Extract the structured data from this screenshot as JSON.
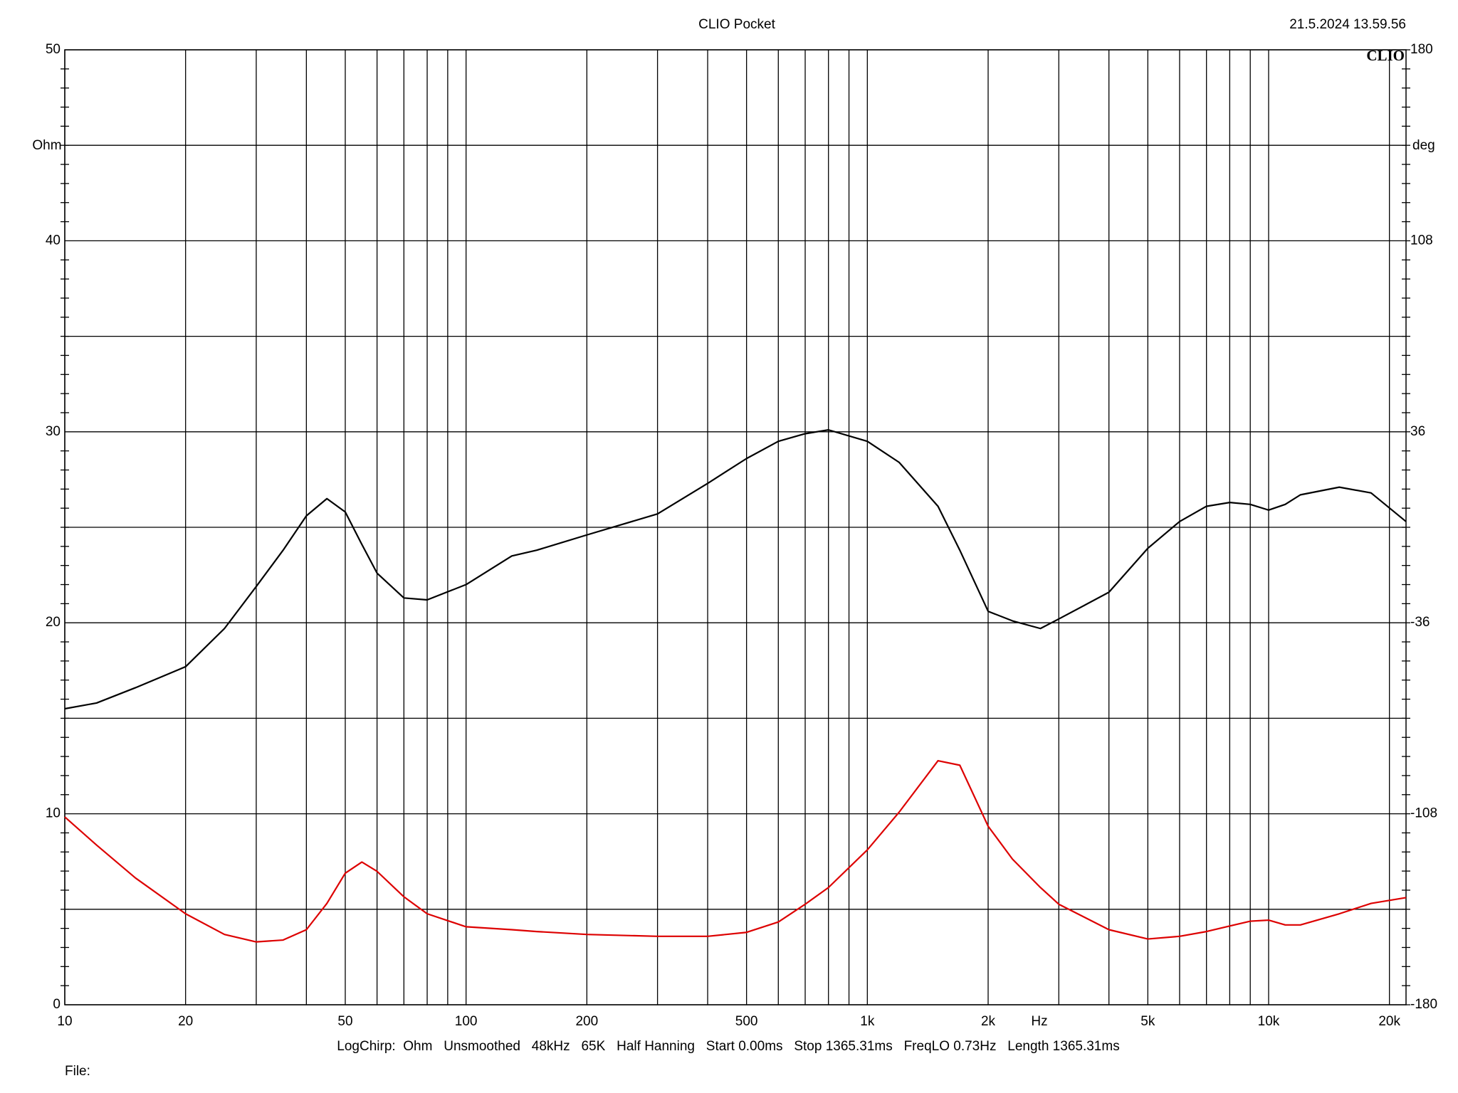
{
  "chart_data": {
    "type": "line",
    "title": "CLIO Pocket",
    "timestamp": "21.5.2024 13.59.56",
    "logo": "CLIO",
    "x_label": "Hz",
    "y_label": "Ohm",
    "y2_label": "deg",
    "footer": "LogChirp:  Ohm   Unsmoothed   48kHz   65K   Half Hanning   Start 0.00ms   Stop 1365.31ms   FreqLO 0.73Hz   Length 1365.31ms",
    "file_label": "File:",
    "xscale": "log",
    "grid": true,
    "xlim": [
      10,
      22000
    ],
    "xticks": [
      10,
      20,
      50,
      100,
      200,
      500,
      {
        "value": 1000,
        "label": "1k"
      },
      {
        "value": 2000,
        "label": "2k"
      },
      {
        "value": 5000,
        "label": "5k"
      },
      {
        "value": 10000,
        "label": "10k"
      },
      {
        "value": 20000,
        "label": "20k"
      }
    ],
    "ylim": [
      0,
      50
    ],
    "yticks": [
      0,
      10,
      20,
      30,
      40,
      50
    ],
    "y2lim": [
      -180,
      180
    ],
    "y2ticks": [
      -180,
      -108,
      -36,
      36,
      108,
      180
    ],
    "x": [
      10,
      12,
      15,
      20,
      25,
      30,
      35,
      40,
      45,
      50,
      55,
      60,
      70,
      80,
      100,
      130,
      150,
      200,
      300,
      400,
      500,
      600,
      700,
      800,
      1000,
      1200,
      1500,
      1700,
      2000,
      2300,
      2700,
      3000,
      4000,
      5000,
      6000,
      7000,
      8000,
      9000,
      10000,
      11000,
      12000,
      15000,
      18000,
      22000
    ],
    "series": [
      {
        "color": "#000000",
        "values": [
          15.5,
          15.8,
          16.6,
          17.7,
          19.7,
          21.9,
          23.8,
          25.6,
          26.5,
          25.8,
          24.1,
          22.6,
          21.3,
          21.2,
          22.0,
          23.5,
          23.8,
          24.6,
          25.7,
          27.3,
          28.6,
          29.5,
          29.9,
          30.1,
          29.5,
          28.4,
          26.1,
          23.8,
          20.6,
          20.1,
          19.7,
          20.2,
          21.6,
          23.9,
          25.3,
          26.1,
          26.3,
          26.2,
          25.9,
          26.2,
          26.7,
          27.1,
          26.8,
          25.3
        ]
      },
      {
        "color": "#dd0000",
        "axis": "y2",
        "values": [
          -109.2,
          -119.8,
          -132.2,
          -145.7,
          -153.5,
          -156.3,
          -155.6,
          -151.7,
          -141.8,
          -130.4,
          -126.2,
          -129.7,
          -139.3,
          -145.7,
          -150.6,
          -151.7,
          -152.4,
          -153.5,
          -154.2,
          -154.2,
          -152.7,
          -148.8,
          -142.1,
          -135.8,
          -121.6,
          -107.4,
          -88.0,
          -89.7,
          -112.7,
          -125.1,
          -135.8,
          -142.1,
          -151.7,
          -155.2,
          -154.2,
          -152.4,
          -150.3,
          -148.5,
          -148.1,
          -149.9,
          -149.9,
          -145.7,
          -141.8,
          -139.6
        ]
      }
    ]
  }
}
